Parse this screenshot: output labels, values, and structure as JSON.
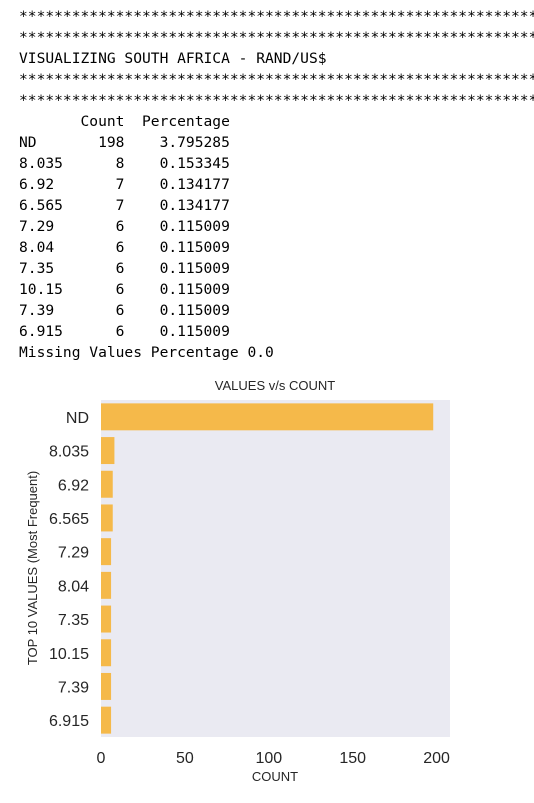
{
  "console": {
    "lines": [
      "************************************************************",
      "************************************************************",
      "VISUALIZING SOUTH AFRICA - RAND/US$",
      "************************************************************",
      "************************************************************",
      "       Count  Percentage",
      "ND       198    3.795285",
      "8.035      8    0.153345",
      "6.92       7    0.134177",
      "6.565      7    0.134177",
      "7.29       6    0.115009",
      "8.04       6    0.115009",
      "7.35       6    0.115009",
      "10.15      6    0.115009",
      "7.39       6    0.115009",
      "6.915      6    0.115009",
      "Missing Values Percentage 0.0"
    ]
  },
  "chart_data": {
    "type": "bar",
    "orientation": "horizontal",
    "title": "VALUES v/s COUNT",
    "xlabel": "COUNT",
    "ylabel": "TOP 10 VALUES (Most Frequent)",
    "categories": [
      "ND",
      "8.035",
      "6.92",
      "6.565",
      "7.29",
      "8.04",
      "7.35",
      "10.15",
      "7.39",
      "6.915"
    ],
    "values": [
      198,
      8,
      7,
      7,
      6,
      6,
      6,
      6,
      6,
      6
    ],
    "xlim": [
      0,
      208
    ],
    "xticks": [
      "0",
      "50",
      "100",
      "150",
      "200"
    ],
    "grid": false,
    "colors": {
      "bar": "#f5b94a",
      "plot_background": "#eaeaf2",
      "text": "#262626"
    }
  }
}
